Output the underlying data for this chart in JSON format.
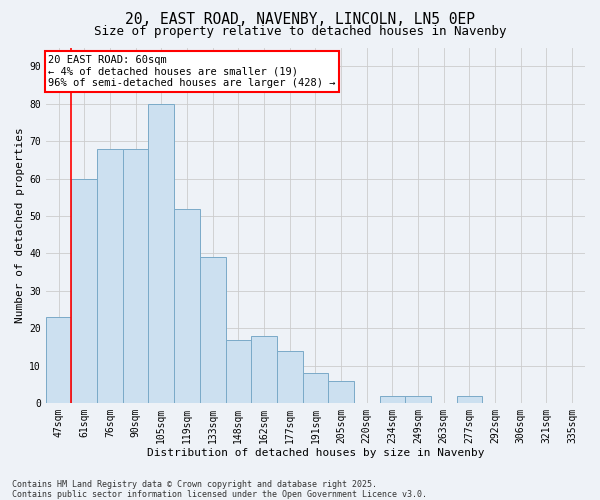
{
  "title1": "20, EAST ROAD, NAVENBY, LINCOLN, LN5 0EP",
  "title2": "Size of property relative to detached houses in Navenby",
  "xlabel": "Distribution of detached houses by size in Navenby",
  "ylabel": "Number of detached properties",
  "categories": [
    "47sqm",
    "61sqm",
    "76sqm",
    "90sqm",
    "105sqm",
    "119sqm",
    "133sqm",
    "148sqm",
    "162sqm",
    "177sqm",
    "191sqm",
    "205sqm",
    "220sqm",
    "234sqm",
    "249sqm",
    "263sqm",
    "277sqm",
    "292sqm",
    "306sqm",
    "321sqm",
    "335sqm"
  ],
  "values": [
    23,
    60,
    68,
    68,
    80,
    52,
    39,
    17,
    18,
    14,
    8,
    6,
    0,
    2,
    2,
    0,
    2,
    0,
    0,
    0,
    0
  ],
  "bar_color": "#cce0f0",
  "bar_edge_color": "#7aaac8",
  "annotation_text": "20 EAST ROAD: 60sqm\n← 4% of detached houses are smaller (19)\n96% of semi-detached houses are larger (428) →",
  "annotation_box_color": "white",
  "annotation_box_edge": "red",
  "vline_color": "red",
  "vline_x": 0.5,
  "bg_color": "#eef2f7",
  "grid_color": "#cccccc",
  "yticks": [
    0,
    10,
    20,
    30,
    40,
    50,
    60,
    70,
    80,
    90
  ],
  "footer": "Contains HM Land Registry data © Crown copyright and database right 2025.\nContains public sector information licensed under the Open Government Licence v3.0.",
  "title_fontsize": 10.5,
  "subtitle_fontsize": 9,
  "label_fontsize": 8,
  "tick_fontsize": 7,
  "footer_fontsize": 6,
  "annot_fontsize": 7.5
}
